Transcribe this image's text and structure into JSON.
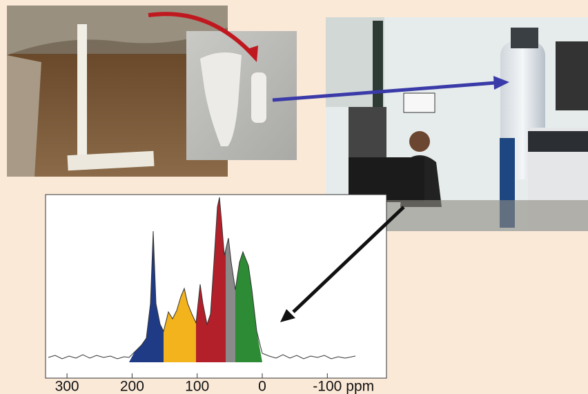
{
  "spectrum": {
    "x_ticks": [
      300,
      200,
      100,
      0,
      -100
    ],
    "unit": "ppm"
  }
}
